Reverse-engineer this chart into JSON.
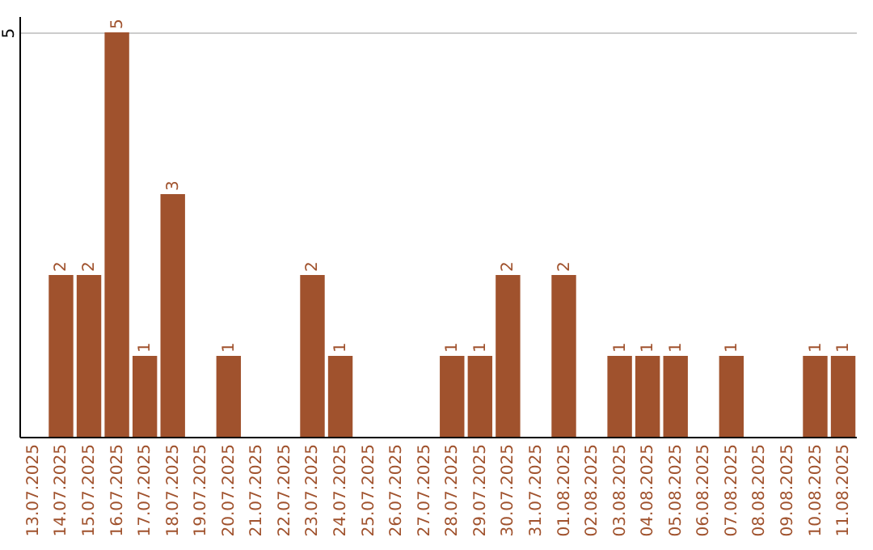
{
  "chart_data": {
    "type": "bar",
    "categories": [
      "13.07.2025",
      "14.07.2025",
      "15.07.2025",
      "16.07.2025",
      "17.07.2025",
      "18.07.2025",
      "19.07.2025",
      "20.07.2025",
      "21.07.2025",
      "22.07.2025",
      "23.07.2025",
      "24.07.2025",
      "25.07.2025",
      "26.07.2025",
      "27.07.2025",
      "28.07.2025",
      "29.07.2025",
      "30.07.2025",
      "31.07.2025",
      "01.08.2025",
      "02.08.2025",
      "03.08.2025",
      "04.08.2025",
      "05.08.2025",
      "06.08.2025",
      "07.08.2025",
      "08.08.2025",
      "09.08.2025",
      "10.08.2025",
      "11.08.2025"
    ],
    "values": [
      0,
      2,
      2,
      5,
      1,
      3,
      0,
      1,
      0,
      0,
      2,
      1,
      0,
      0,
      0,
      1,
      1,
      2,
      0,
      2,
      0,
      1,
      1,
      1,
      0,
      1,
      0,
      0,
      1,
      1
    ],
    "value_labels": [
      null,
      "2",
      "2",
      "5",
      "1",
      "3",
      null,
      "1",
      null,
      null,
      "2",
      "1",
      null,
      null,
      null,
      "1",
      "1",
      "2",
      null,
      "2",
      null,
      "1",
      "1",
      "1",
      null,
      "1",
      null,
      null,
      "1",
      "1"
    ],
    "color": "#a0522d",
    "ylim": [
      0,
      5.2
    ],
    "yticks": [
      5
    ],
    "grid": "y"
  }
}
